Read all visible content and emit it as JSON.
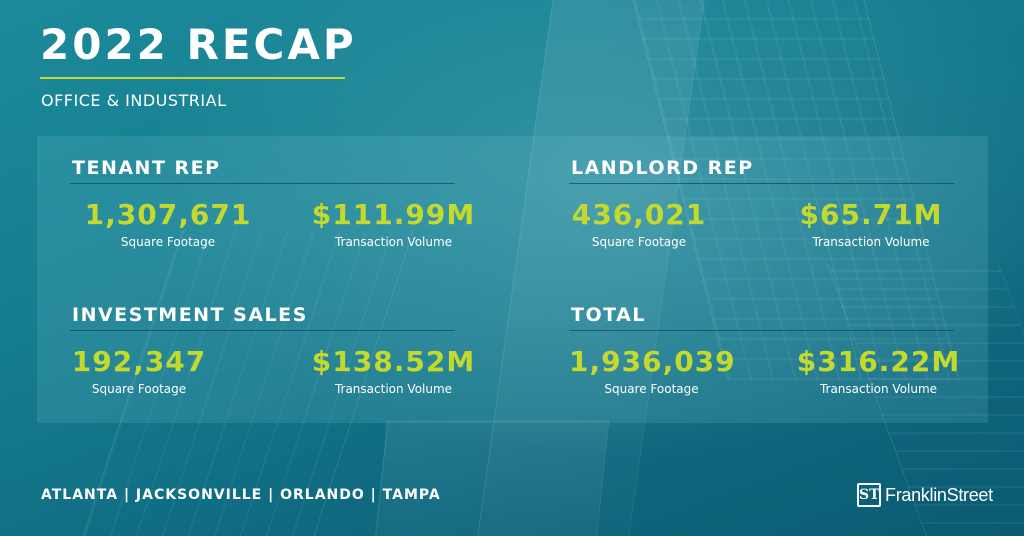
{
  "header": {
    "title": "2022 RECAP",
    "subtitle": "OFFICE & INDUSTRIAL"
  },
  "sections": {
    "tenant_rep": {
      "heading": "TENANT REP",
      "sqft_value": "1,307,671",
      "sqft_label": "Square Footage",
      "volume_value": "$111.99M",
      "volume_label": "Transaction Volume"
    },
    "landlord_rep": {
      "heading": "LANDLORD REP",
      "sqft_value": "436,021",
      "sqft_label": "Square Footage",
      "volume_value": "$65.71M",
      "volume_label": "Transaction Volume"
    },
    "investment_sales": {
      "heading": "INVESTMENT SALES",
      "sqft_value": "192,347",
      "sqft_label": "Square Footage",
      "volume_value": "$138.52M",
      "volume_label": "Transaction Volume"
    },
    "total": {
      "heading": "TOTAL",
      "sqft_value": "1,936,039",
      "sqft_label": "Square Footage",
      "volume_value": "$316.22M",
      "volume_label": "Transaction Volume"
    }
  },
  "footer": {
    "cities": "ATLANTA | JACKSONVILLE | ORLANDO | TAMPA",
    "logo_mark": "ST",
    "logo_text": "FranklinStreet"
  },
  "colors": {
    "accent": "#c4d92e",
    "background": "#167e90"
  }
}
